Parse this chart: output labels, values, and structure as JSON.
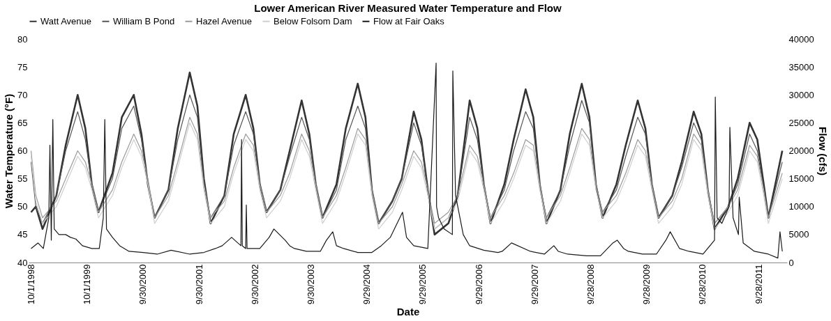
{
  "chart_data": {
    "type": "line",
    "title": "Lower American River Measured Water Temperature and Flow",
    "xlabel": "Date",
    "ylabel": "Water Temperature (°F)",
    "y2label": "Flow (cfs)",
    "x": [
      "1998-10-01",
      "1998-11-01",
      "1998-12-15",
      "1999-03-15",
      "1999-05-15",
      "1999-08-01",
      "1999-09-20",
      "1999-11-01",
      "1999-12-15",
      "2000-03-15",
      "2000-05-15",
      "2000-08-01",
      "2000-09-20",
      "2000-11-01",
      "2000-12-15",
      "2001-03-15",
      "2001-05-15",
      "2001-08-01",
      "2001-09-20",
      "2001-11-01",
      "2001-12-15",
      "2002-03-15",
      "2002-05-15",
      "2002-08-01",
      "2002-09-20",
      "2002-11-01",
      "2002-12-15",
      "2003-03-15",
      "2003-05-15",
      "2003-08-01",
      "2003-09-20",
      "2003-11-01",
      "2003-12-15",
      "2004-03-15",
      "2004-05-15",
      "2004-08-01",
      "2004-09-20",
      "2004-11-01",
      "2004-12-15",
      "2005-03-15",
      "2005-05-15",
      "2005-08-01",
      "2005-09-20",
      "2005-11-01",
      "2005-12-15",
      "2006-03-15",
      "2006-05-15",
      "2006-08-01",
      "2006-09-20",
      "2006-11-01",
      "2006-12-15",
      "2007-03-15",
      "2007-05-15",
      "2007-08-01",
      "2007-09-20",
      "2007-11-01",
      "2007-12-15",
      "2008-03-15",
      "2008-05-15",
      "2008-08-01",
      "2008-09-20",
      "2008-11-01",
      "2008-12-15",
      "2009-03-15",
      "2009-05-15",
      "2009-08-01",
      "2009-09-20",
      "2009-11-01",
      "2009-12-15",
      "2010-03-15",
      "2010-05-15",
      "2010-08-01",
      "2010-09-20",
      "2010-11-01",
      "2010-12-15",
      "2011-03-15",
      "2011-05-15",
      "2011-08-01",
      "2011-09-20",
      "2011-11-01",
      "2011-12-01",
      "2012-03-01"
    ],
    "xlim": [
      "1998-09-15",
      "2012-04-01"
    ],
    "xticks": [
      {
        "value": "1998-10-01",
        "label": "10/1/1998"
      },
      {
        "value": "1999-10-01",
        "label": "10/1/1999"
      },
      {
        "value": "2000-09-30",
        "label": "9/30/2000"
      },
      {
        "value": "2001-09-30",
        "label": "9/30/2001"
      },
      {
        "value": "2002-09-30",
        "label": "9/30/2002"
      },
      {
        "value": "2003-09-30",
        "label": "9/30/2003"
      },
      {
        "value": "2004-09-29",
        "label": "9/29/2004"
      },
      {
        "value": "2005-09-29",
        "label": "9/29/2005"
      },
      {
        "value": "2006-09-29",
        "label": "9/29/2006"
      },
      {
        "value": "2007-09-29",
        "label": "9/29/2007"
      },
      {
        "value": "2008-09-28",
        "label": "9/28/2008"
      },
      {
        "value": "2009-09-28",
        "label": "9/28/2009"
      },
      {
        "value": "2010-09-28",
        "label": "9/28/2010"
      },
      {
        "value": "2011-09-28",
        "label": "9/28/2011"
      }
    ],
    "ylim": [
      40,
      80
    ],
    "yticks": [
      40,
      45,
      50,
      55,
      60,
      65,
      70,
      75,
      80
    ],
    "y2lim": [
      0,
      40000
    ],
    "y2ticks": [
      0,
      5000,
      10000,
      15000,
      20000,
      25000,
      30000,
      35000,
      40000
    ],
    "legend": "top",
    "grid": false,
    "series": [
      {
        "name": "Watt Avenue",
        "color": "#333333",
        "values": [
          49,
          50,
          46,
          52,
          61,
          70,
          64,
          54,
          49,
          56,
          66,
          70,
          63,
          54,
          48,
          53,
          64,
          74,
          68,
          55,
          47,
          52,
          63,
          70,
          64,
          54,
          49,
          53,
          60,
          69,
          63,
          54,
          48,
          54,
          64,
          72,
          66,
          53,
          47,
          51,
          55,
          67,
          62,
          53,
          45,
          47,
          52,
          69,
          64,
          54,
          47,
          54,
          62,
          71,
          66,
          54,
          47,
          53,
          63,
          72,
          66,
          54,
          48,
          54,
          61,
          69,
          64,
          54,
          48,
          52,
          58,
          67,
          63,
          53,
          46,
          50,
          55,
          65,
          62,
          54,
          48,
          60
        ]
      },
      {
        "name": "William B Pond",
        "color": "#555555",
        "values": [
          58,
          50,
          47,
          52,
          60,
          67,
          62,
          54,
          49,
          55,
          64,
          68,
          62,
          54,
          48,
          53,
          62,
          70,
          66,
          54,
          48,
          52,
          61,
          67,
          63,
          54,
          49,
          53,
          59,
          66,
          62,
          54,
          48,
          53,
          62,
          68,
          64,
          53,
          47,
          51,
          55,
          65,
          61,
          53,
          46,
          48,
          52,
          66,
          62,
          54,
          48,
          53,
          60,
          67,
          64,
          54,
          48,
          53,
          61,
          69,
          65,
          54,
          49,
          53,
          59,
          66,
          63,
          54,
          48,
          52,
          57,
          65,
          62,
          53,
          47,
          50,
          54,
          63,
          60,
          53,
          48,
          58
        ]
      },
      {
        "name": "Hazel Avenue",
        "color": "#9a9a9a",
        "values": [
          60,
          52,
          48,
          51,
          55,
          60,
          58,
          54,
          49,
          53,
          58,
          63,
          60,
          55,
          48,
          52,
          58,
          66,
          63,
          54,
          48,
          51,
          57,
          63,
          61,
          54,
          49,
          52,
          56,
          63,
          60,
          54,
          48,
          52,
          57,
          64,
          62,
          53,
          47,
          50,
          54,
          60,
          58,
          53,
          47,
          49,
          52,
          61,
          59,
          54,
          48,
          52,
          56,
          62,
          61,
          54,
          48,
          52,
          57,
          64,
          62,
          54,
          49,
          52,
          56,
          62,
          60,
          54,
          48,
          51,
          55,
          63,
          61,
          53,
          47,
          50,
          53,
          61,
          59,
          53,
          48,
          56
        ]
      },
      {
        "name": "Below Folsom Dam",
        "color": "#cfcfcf",
        "values": [
          59,
          51,
          47,
          50,
          54,
          59,
          57,
          53,
          48,
          52,
          57,
          62,
          59,
          54,
          47,
          51,
          57,
          65,
          62,
          53,
          47,
          50,
          56,
          62,
          60,
          53,
          48,
          51,
          55,
          62,
          59,
          53,
          47,
          51,
          56,
          63,
          61,
          52,
          46,
          49,
          53,
          59,
          57,
          52,
          46,
          48,
          51,
          60,
          58,
          53,
          47,
          51,
          55,
          61,
          60,
          53,
          47,
          51,
          56,
          63,
          61,
          53,
          48,
          51,
          55,
          61,
          59,
          53,
          47,
          50,
          54,
          62,
          60,
          52,
          46,
          49,
          52,
          60,
          58,
          52,
          47,
          55
        ]
      },
      {
        "name": "Flow at Fair Oaks",
        "color": "#1a1a1a",
        "axis": "y2",
        "x": [
          "1998-10-01",
          "1998-11-15",
          "1998-12-20",
          "1999-01-25",
          "1999-02-01",
          "1999-02-10",
          "1999-02-20",
          "1999-03-01",
          "1999-04-01",
          "1999-05-15",
          "1999-06-15",
          "1999-07-20",
          "1999-09-01",
          "1999-11-01",
          "1999-12-20",
          "2000-01-15",
          "2000-01-25",
          "2000-02-05",
          "2000-03-15",
          "2000-05-01",
          "2000-07-01",
          "2000-10-01",
          "2001-01-01",
          "2001-04-01",
          "2001-08-01",
          "2001-11-01",
          "2002-01-15",
          "2002-03-01",
          "2002-05-01",
          "2002-07-01",
          "2002-07-05",
          "2002-07-10",
          "2002-08-01",
          "2002-08-05",
          "2002-08-10",
          "2002-11-01",
          "2003-01-01",
          "2003-02-01",
          "2003-04-15",
          "2003-05-15",
          "2003-06-15",
          "2003-09-01",
          "2003-12-01",
          "2004-01-10",
          "2004-02-20",
          "2004-03-15",
          "2004-05-01",
          "2004-08-01",
          "2004-11-01",
          "2005-01-01",
          "2005-03-01",
          "2005-05-20",
          "2005-06-15",
          "2005-08-01",
          "2005-11-01",
          "2005-12-25",
          "2005-12-28",
          "2006-01-10",
          "2006-02-15",
          "2006-04-10",
          "2006-04-13",
          "2006-05-01",
          "2006-06-20",
          "2006-08-01",
          "2006-11-01",
          "2007-02-01",
          "2007-03-01",
          "2007-05-01",
          "2007-09-01",
          "2007-12-01",
          "2008-02-01",
          "2008-03-01",
          "2008-05-01",
          "2008-09-01",
          "2008-12-01",
          "2009-02-20",
          "2009-03-20",
          "2009-05-01",
          "2009-06-01",
          "2009-09-01",
          "2009-12-01",
          "2010-02-01",
          "2010-03-01",
          "2010-05-01",
          "2010-07-01",
          "2010-10-01",
          "2010-12-15",
          "2010-12-20",
          "2011-01-01",
          "2011-02-01",
          "2011-03-20",
          "2011-03-25",
          "2011-04-15",
          "2011-05-20",
          "2011-05-25",
          "2011-06-20",
          "2011-09-01",
          "2011-12-01",
          "2012-02-01",
          "2012-02-15",
          "2012-03-01"
        ],
        "values": [
          2500,
          3500,
          2500,
          8000,
          21000,
          4000,
          25600,
          6000,
          5000,
          5000,
          4500,
          4200,
          3000,
          2500,
          2500,
          8000,
          25600,
          6000,
          4500,
          3000,
          2000,
          1800,
          1500,
          2200,
          1500,
          1800,
          2500,
          3000,
          4500,
          3000,
          22000,
          3000,
          2500,
          10300,
          2500,
          2500,
          4500,
          6000,
          4000,
          3000,
          2500,
          2000,
          2000,
          4000,
          5500,
          3000,
          2500,
          1800,
          1800,
          3000,
          4500,
          9000,
          4500,
          3000,
          2500,
          35700,
          10000,
          8000,
          6000,
          5000,
          34300,
          12000,
          5000,
          3000,
          2200,
          1800,
          2000,
          3500,
          2000,
          1500,
          3000,
          2000,
          1500,
          1200,
          1200,
          3500,
          4000,
          2500,
          2000,
          1500,
          1500,
          4000,
          5500,
          2500,
          2000,
          1500,
          4000,
          29600,
          8000,
          7000,
          10000,
          24200,
          8000,
          5000,
          11700,
          3500,
          2000,
          1500,
          800,
          5500,
          2000
        ]
      }
    ]
  }
}
